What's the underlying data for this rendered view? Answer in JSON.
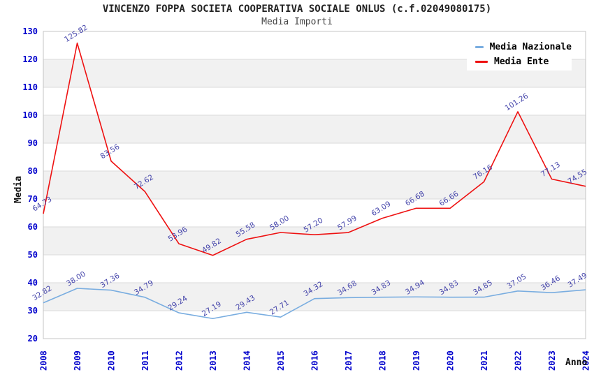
{
  "header": {
    "title": "VINCENZO FOPPA SOCIETA COOPERATIVA SOCIALE ONLUS (c.f.02049080175)",
    "subtitle": "Media Importi"
  },
  "chart_data": {
    "type": "line",
    "title": "VINCENZO FOPPA SOCIETA COOPERATIVA SOCIALE ONLUS (c.f.02049080175)",
    "subtitle": "Media Importi",
    "xlabel": "Anno",
    "ylabel": "Media",
    "x": [
      2008,
      2009,
      2010,
      2011,
      2012,
      2013,
      2014,
      2015,
      2016,
      2017,
      2018,
      2019,
      2020,
      2021,
      2022,
      2023,
      2024
    ],
    "series": [
      {
        "name": "Media Nazionale",
        "color": "#79ade0",
        "values": [
          32.82,
          38.0,
          37.36,
          34.79,
          29.24,
          27.19,
          29.43,
          27.71,
          34.32,
          34.68,
          34.83,
          34.94,
          34.83,
          34.85,
          37.05,
          36.46,
          37.49
        ]
      },
      {
        "name": "Media Ente",
        "color": "#ee1111",
        "values": [
          64.73,
          125.82,
          83.56,
          72.62,
          53.96,
          49.82,
          55.58,
          58.0,
          57.2,
          57.99,
          63.09,
          66.68,
          66.66,
          76.16,
          101.26,
          77.13,
          74.55
        ]
      }
    ],
    "ylim": [
      20,
      130
    ],
    "ytick_step": 10,
    "grid": true,
    "alternating_bands": true,
    "legend_position": "top-right",
    "colors": {
      "axis_text": "#0000cc",
      "point_label": "#4444aa",
      "band_fill": "#f1f1f1",
      "grid_line": "#dadada",
      "plot_border": "#c4c4c4"
    }
  }
}
